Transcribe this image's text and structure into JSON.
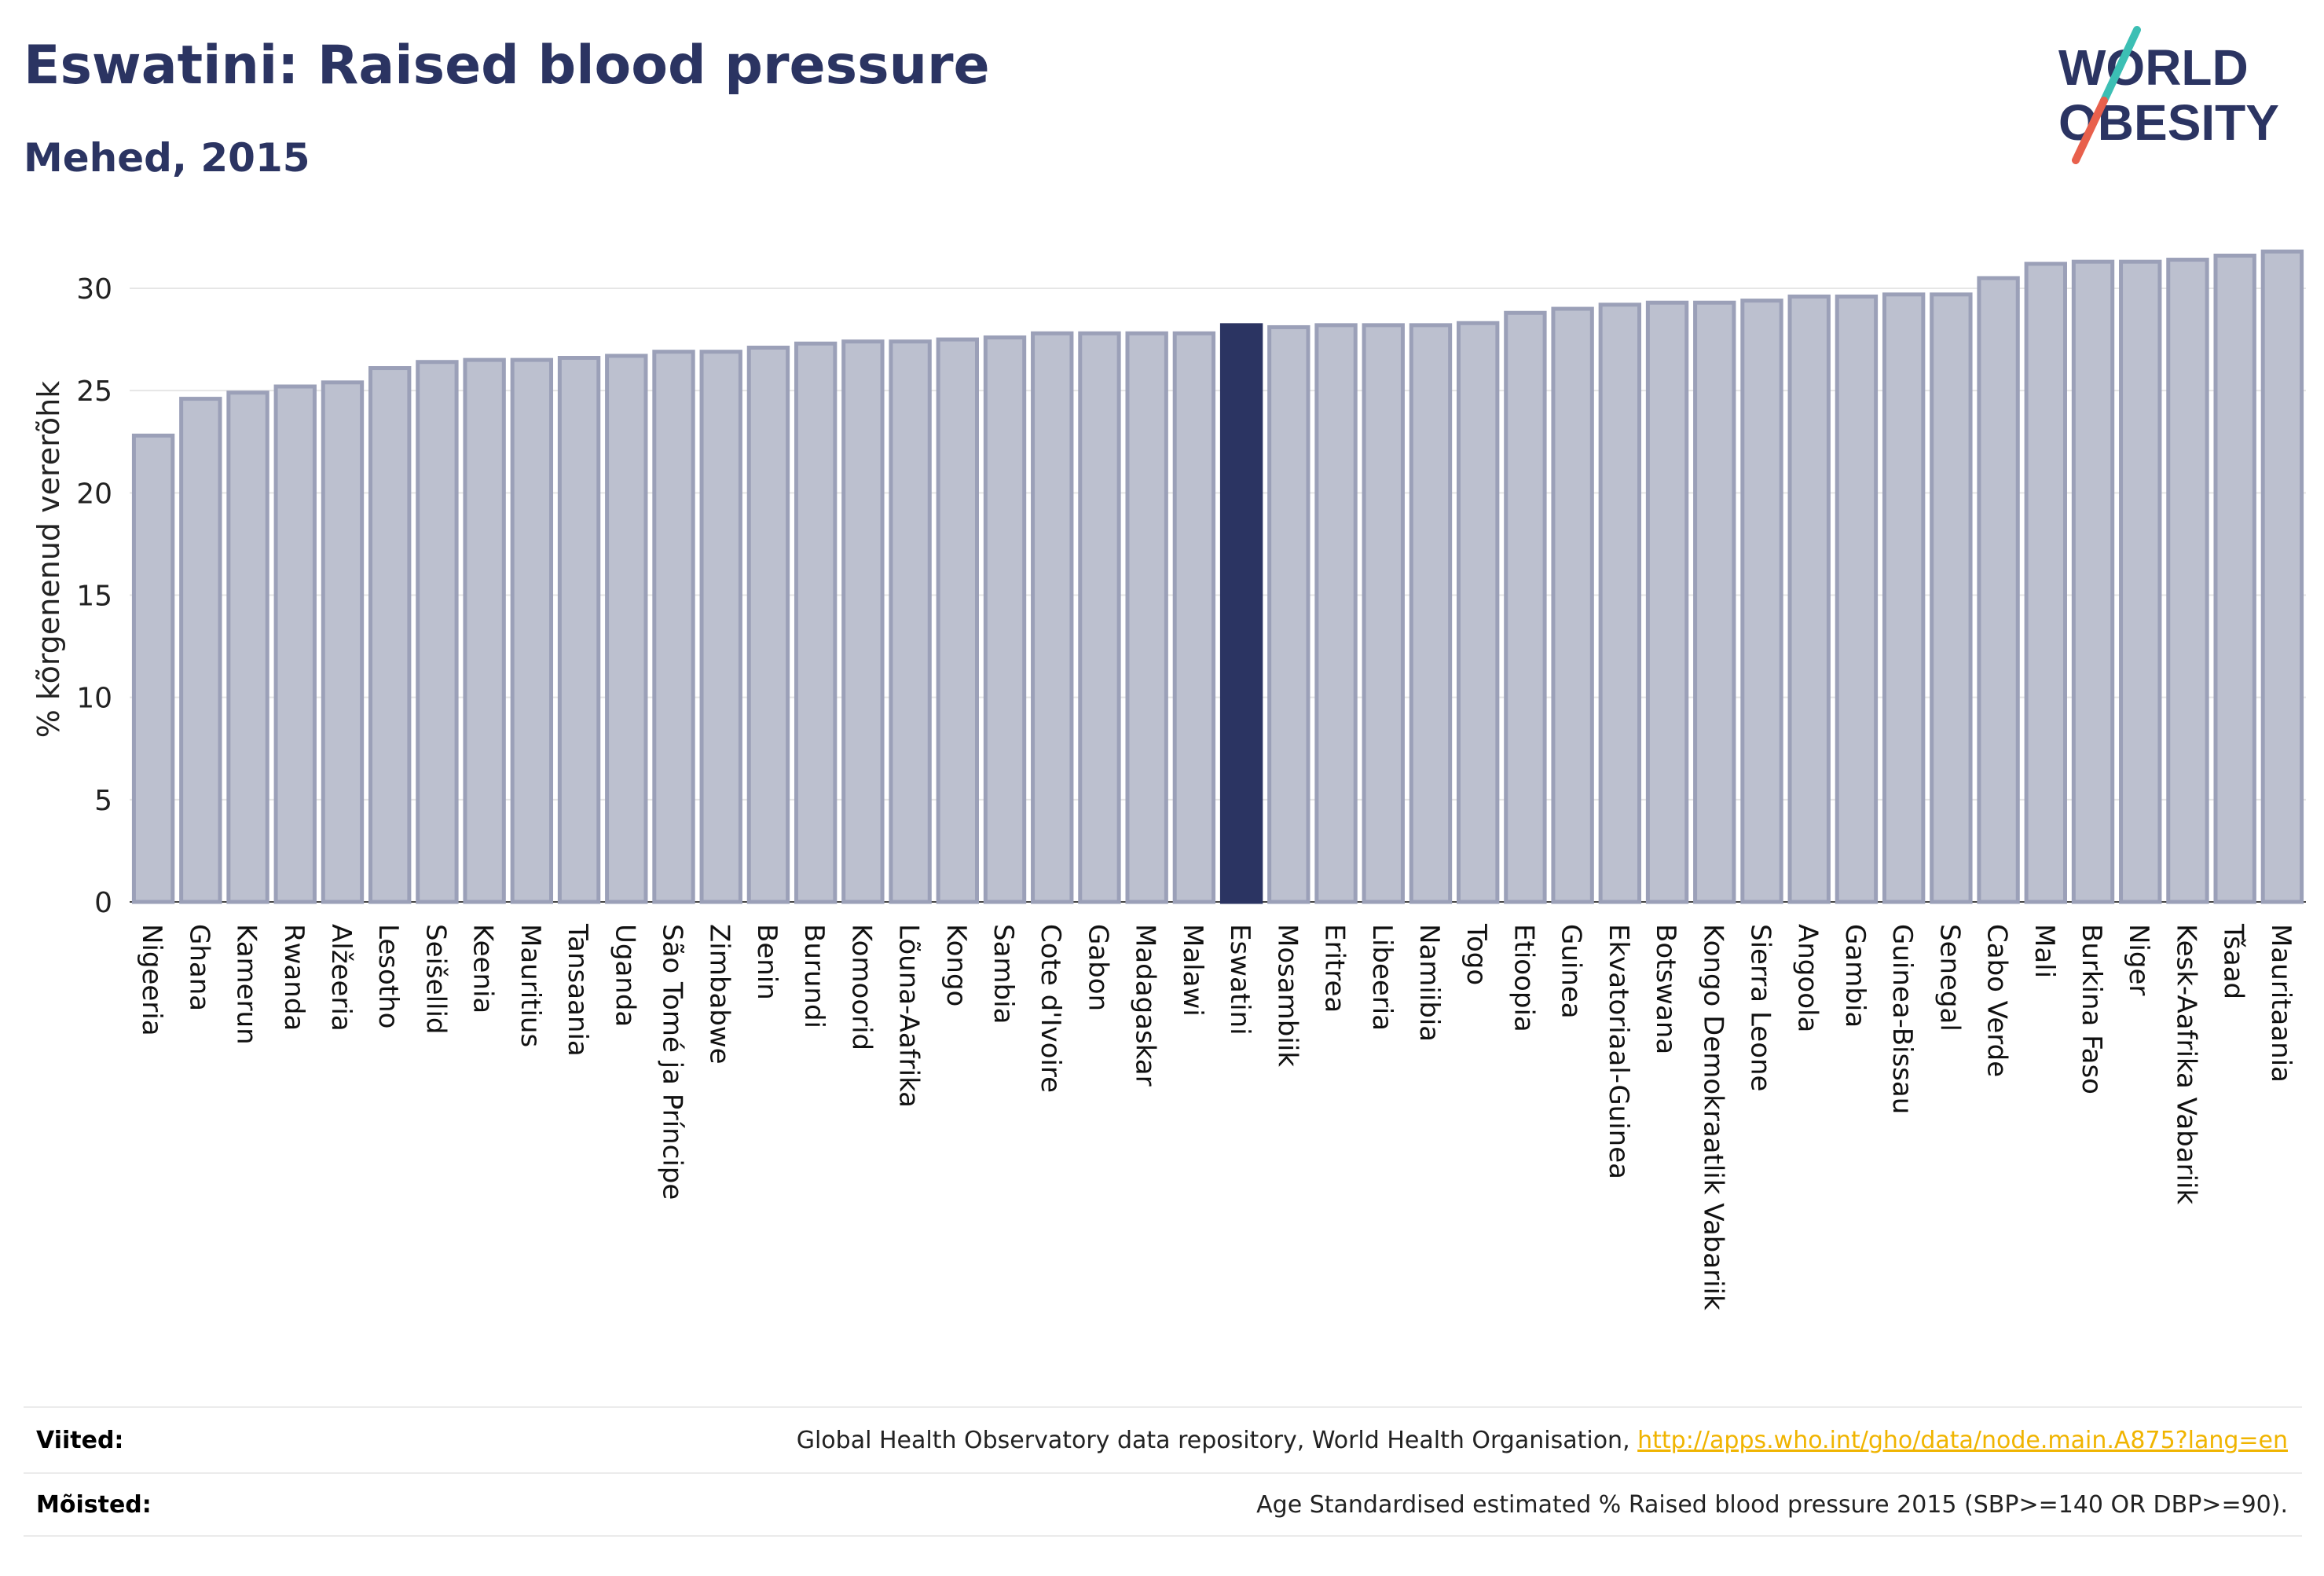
{
  "header": {
    "title": "Eswatini: Raised blood pressure",
    "subtitle": "Mehed, 2015"
  },
  "logo": {
    "line1": "WORLD",
    "line2": "OBESITY",
    "accent_colors": [
      "#3cbfb4",
      "#e8604c"
    ],
    "text_color": "#2b3462"
  },
  "chart_data": {
    "type": "bar",
    "title": "Eswatini: Raised blood pressure",
    "subtitle": "Mehed, 2015",
    "xlabel": "",
    "ylabel": "% kõrgenenud vererõhk",
    "ylim": [
      0,
      32.5
    ],
    "yticks": [
      0,
      5,
      10,
      15,
      20,
      25,
      30
    ],
    "grid": true,
    "legend": "none",
    "highlight": "Eswatini",
    "colors": {
      "bar": "#bcc0cf",
      "bar_edge": "#9ba0b8",
      "highlight": "#2b3462"
    },
    "categories": [
      "Nigeeria",
      "Ghana",
      "Kamerun",
      "Rwanda",
      "Alžeeria",
      "Lesotho",
      "Seišellid",
      "Keenia",
      "Mauritius",
      "Tansaania",
      "Uganda",
      "São Tomé ja Príncipe",
      "Zimbabwe",
      "Benin",
      "Burundi",
      "Komoorid",
      "Lõuna-Aafrika",
      "Kongo",
      "Sambia",
      "Cote d'Ivoire",
      "Gabon",
      "Madagaskar",
      "Malawi",
      "Eswatini",
      "Mosambiik",
      "Eritrea",
      "Libeeria",
      "Namiibia",
      "Togo",
      "Etioopia",
      "Guinea",
      "Ekvatoriaal-Guinea",
      "Botswana",
      "Kongo Demokraatlik Vabariik",
      "Sierra Leone",
      "Angoola",
      "Gambia",
      "Guinea-Bissau",
      "Senegal",
      "Cabo Verde",
      "Mali",
      "Burkina Faso",
      "Niger",
      "Kesk-Aafrika Vabariik",
      "Tšaad",
      "Mauritaania"
    ],
    "values": [
      22.8,
      24.6,
      24.9,
      25.2,
      25.4,
      26.1,
      26.4,
      26.5,
      26.5,
      26.6,
      26.7,
      26.9,
      26.9,
      27.1,
      27.3,
      27.4,
      27.4,
      27.5,
      27.6,
      27.8,
      27.8,
      27.8,
      27.8,
      28.2,
      28.1,
      28.2,
      28.2,
      28.2,
      28.3,
      28.8,
      29.0,
      29.2,
      29.3,
      29.3,
      29.4,
      29.6,
      29.6,
      29.7,
      29.7,
      30.5,
      31.2,
      31.3,
      31.3,
      31.4,
      31.6,
      31.8
    ]
  },
  "footer": {
    "sources_label": "Viited:",
    "sources_text": "Global Health Observatory data repository, World Health Organisation, ",
    "sources_link": "http://apps.who.int/gho/data/node.main.A875?lang=en",
    "definitions_label": "Mõisted:",
    "definitions_text": "Age Standardised estimated % Raised blood pressure 2015 (SBP>=140 OR DBP>=90)."
  }
}
